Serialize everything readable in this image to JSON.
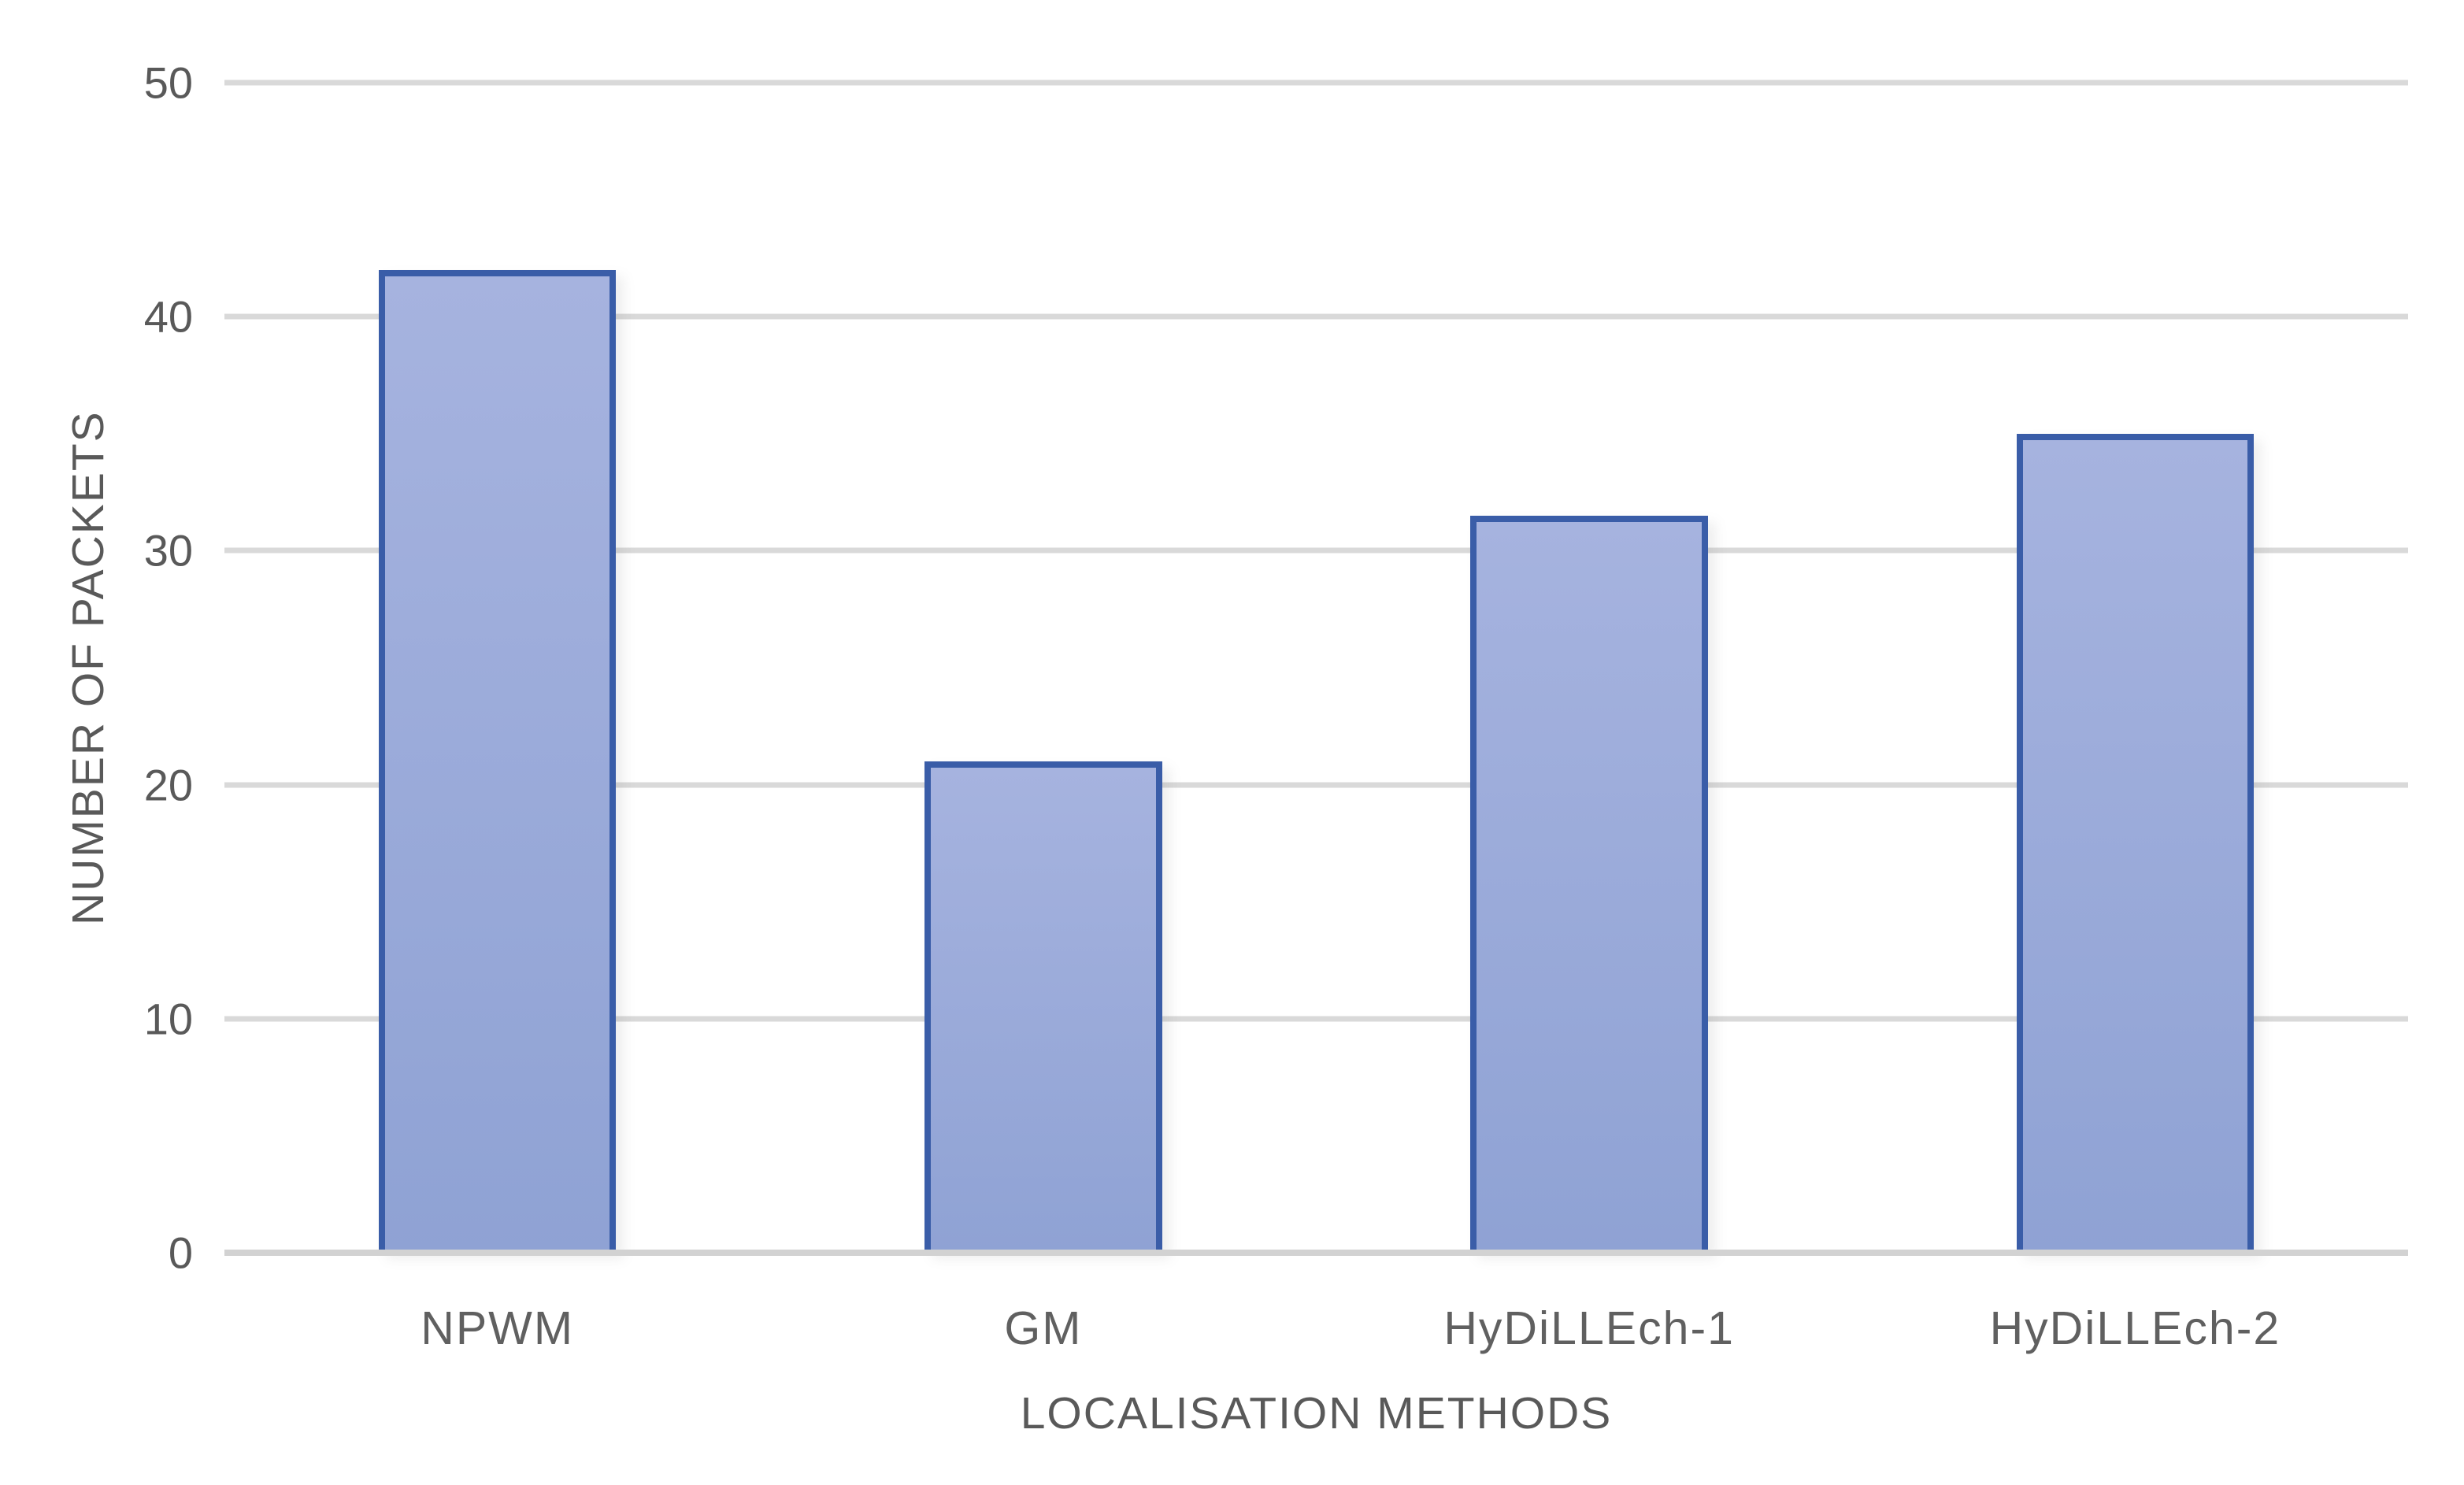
{
  "chart_data": {
    "type": "bar",
    "title": "",
    "categories": [
      "NPWM",
      "GM",
      "HyDiLLEch-1",
      "HyDiLLEch-2"
    ],
    "values": [
      42,
      21,
      31.5,
      35
    ],
    "xlabel": "LOCALISATION METHODS",
    "ylabel": "NUMBER OF PACKETS",
    "ylim": [
      0,
      50
    ],
    "yticks": [
      0,
      10,
      20,
      30,
      40,
      50
    ],
    "grid": true,
    "legend": "none",
    "colors": {
      "bar_fill_top": "#a6b3df",
      "bar_fill_bottom": "#8fa2d4",
      "bar_border": "#3a5da8",
      "gridline": "#d9d9d9",
      "axis_line": "#d2d2d2",
      "text": "#595959",
      "background": "#ffffff"
    }
  }
}
